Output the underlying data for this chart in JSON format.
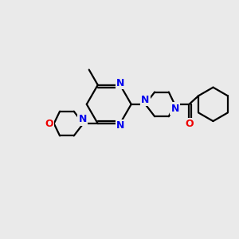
{
  "background_color": "#eaeaea",
  "bond_color": "#000000",
  "N_color": "#0000ee",
  "O_color": "#ee0000",
  "figsize": [
    3.0,
    3.0
  ],
  "dpi": 100,
  "xlim": [
    0,
    10
  ],
  "ylim": [
    0,
    10
  ]
}
